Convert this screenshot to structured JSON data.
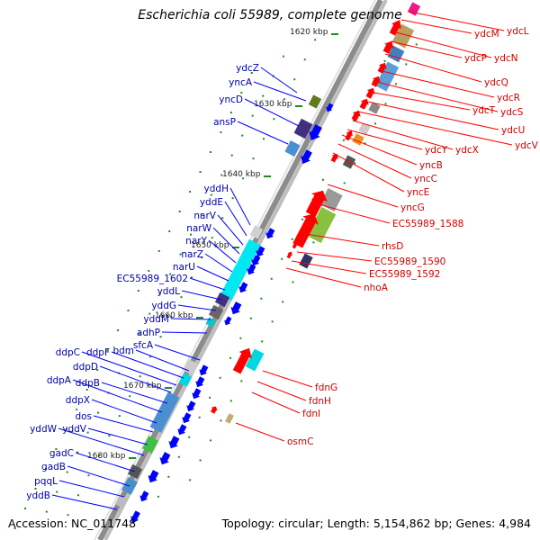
{
  "title": "Escherichia coli 55989, complete genome",
  "footer": {
    "accession": "Accession: NC_011748",
    "summary": "Topology: circular; Length: 5,154,862 bp; Genes: 4,984"
  },
  "colors": {
    "forward_arrow": "#ff0000",
    "reverse_arrow": "#0000ff",
    "forward_label": "#cc0000",
    "reverse_label": "#0000aa",
    "tick": "#1f8a1f",
    "backbone": "#8c8c8c"
  },
  "scale": {
    "unit": "kbp",
    "ticks": [
      "1620 kbp",
      "1630 kbp",
      "1640 kbp",
      "1650 kbp",
      "1660 kbp",
      "1670 kbp",
      "1680 kbp"
    ]
  },
  "forward_genes": [
    "ydcL",
    "ydcM",
    "ydcN",
    "ydcP",
    "ydcQ",
    "ydcR",
    "ydcS",
    "ydcT",
    "ydcU",
    "ydcV",
    "ydcX",
    "ydcY",
    "yncB",
    "yncC",
    "yncE",
    "yncG",
    "EC55989_1588",
    "rhsD",
    "EC55989_1590",
    "EC55989_1592",
    "nhoA",
    "fdnG",
    "fdnH",
    "fdnI",
    "osmC"
  ],
  "reverse_genes": [
    "ydcZ",
    "yncA",
    "yncD",
    "ansP",
    "yddH",
    "yddE",
    "narV",
    "narW",
    "narY",
    "narZ",
    "narU",
    "EC55989_1602",
    "yddL",
    "yddG",
    "yddM",
    "adhP",
    "sfcA",
    "bdm",
    "ddpF",
    "ddpC",
    "ddpD",
    "ddpB",
    "ddpA",
    "ddpX",
    "dos",
    "yddV",
    "yddW",
    "gadC",
    "gadB",
    "pqqL",
    "yddB"
  ]
}
